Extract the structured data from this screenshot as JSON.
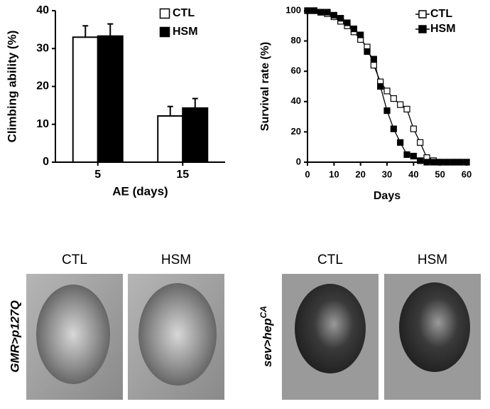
{
  "chart_data": [
    {
      "type": "bar",
      "categories": [
        "5",
        "15"
      ],
      "xlabel": "AE (days)",
      "ylabel": "Climbing ability (%)",
      "ylim": [
        0,
        40
      ],
      "yticks": [
        0,
        10,
        20,
        30,
        40
      ],
      "legend": "upper right",
      "series": [
        {
          "name": "CTL",
          "color": "#ffffff",
          "values": [
            33,
            12.2
          ],
          "errors": [
            3,
            2.5
          ]
        },
        {
          "name": "HSM",
          "color": "#000000",
          "values": [
            33.3,
            14.3
          ],
          "errors": [
            3.2,
            2.5
          ]
        }
      ]
    },
    {
      "type": "line",
      "xlabel": "Days",
      "ylabel": "Survival rate (%)",
      "xlim": [
        0,
        60
      ],
      "xticks": [
        0,
        10,
        20,
        30,
        40,
        50,
        60
      ],
      "ylim": [
        0,
        100
      ],
      "yticks": [
        0,
        20,
        40,
        60,
        80,
        100
      ],
      "legend": "upper right",
      "x": [
        0,
        2.5,
        5,
        7.5,
        10,
        12.5,
        15,
        17.5,
        20,
        22.5,
        25,
        27.5,
        30,
        32.5,
        35,
        37.5,
        40,
        42.5,
        45,
        47.5,
        50,
        52.5,
        55,
        57.5,
        60
      ],
      "series": [
        {
          "name": "CTL",
          "color": "#ffffff",
          "values": [
            100,
            100,
            99,
            98,
            96,
            93,
            90,
            86,
            81,
            76,
            64,
            53,
            47,
            42,
            38,
            35,
            22,
            13,
            3,
            1,
            0,
            0,
            0,
            0,
            0
          ]
        },
        {
          "name": "HSM",
          "color": "#000000",
          "values": [
            100,
            100,
            99,
            99,
            97,
            95,
            92,
            88,
            84,
            73,
            68,
            50,
            34,
            22,
            13,
            5,
            4,
            1,
            0,
            0,
            0,
            0,
            0,
            0,
            0
          ]
        }
      ]
    }
  ],
  "images": {
    "columns": [
      "CTL",
      "HSM",
      "CTL",
      "HSM"
    ],
    "rows": [
      {
        "base": "GMR>p127Q"
      },
      {
        "base": "sev>hep",
        "sup": "CA"
      }
    ]
  }
}
